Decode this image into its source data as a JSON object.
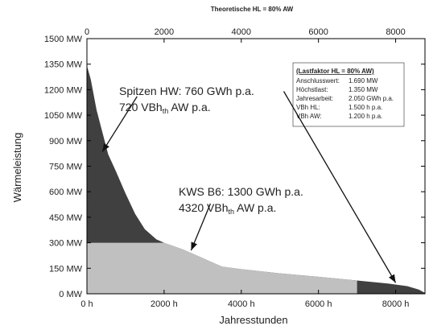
{
  "chart_data": {
    "type": "area",
    "title": "Theoretische HL = 80% AW",
    "xlabel": "Jahresstunden",
    "ylabel": "Wärmeleistung",
    "xlim": [
      0,
      8760
    ],
    "ylim": [
      0,
      1500
    ],
    "x_ticks": [
      {
        "value": 0,
        "bottom": "0 h",
        "top": "0"
      },
      {
        "value": 2000,
        "bottom": "2000 h",
        "top": "2000"
      },
      {
        "value": 4000,
        "bottom": "4000 h",
        "top": "4000"
      },
      {
        "value": 6000,
        "bottom": "6000 h",
        "top": "6000"
      },
      {
        "value": 8000,
        "bottom": "8000 h",
        "top": "8000"
      }
    ],
    "y_ticks": [
      {
        "value": 0,
        "label": "0 MW"
      },
      {
        "value": 150,
        "label": "150 MW"
      },
      {
        "value": 300,
        "label": "300 MW"
      },
      {
        "value": 450,
        "label": "450 MW"
      },
      {
        "value": 600,
        "label": "600 MW"
      },
      {
        "value": 750,
        "label": "750 MW"
      },
      {
        "value": 900,
        "label": "900 MW"
      },
      {
        "value": 1050,
        "label": "1050 MW"
      },
      {
        "value": 1200,
        "label": "1200 MW"
      },
      {
        "value": 1350,
        "label": "1350 MW"
      },
      {
        "value": 1500,
        "label": "1500 MW"
      }
    ],
    "load_curve": [
      {
        "x": 0,
        "y": 1340
      },
      {
        "x": 100,
        "y": 1260
      },
      {
        "x": 250,
        "y": 1080
      },
      {
        "x": 400,
        "y": 950
      },
      {
        "x": 550,
        "y": 820
      },
      {
        "x": 750,
        "y": 720
      },
      {
        "x": 1000,
        "y": 590
      },
      {
        "x": 1250,
        "y": 470
      },
      {
        "x": 1500,
        "y": 380
      },
      {
        "x": 1800,
        "y": 320
      },
      {
        "x": 2000,
        "y": 300
      },
      {
        "x": 2500,
        "y": 260
      },
      {
        "x": 3000,
        "y": 210
      },
      {
        "x": 3500,
        "y": 160
      },
      {
        "x": 4000,
        "y": 145
      },
      {
        "x": 5000,
        "y": 120
      },
      {
        "x": 6000,
        "y": 100
      },
      {
        "x": 7000,
        "y": 78
      },
      {
        "x": 7800,
        "y": 60
      },
      {
        "x": 8300,
        "y": 45
      },
      {
        "x": 8600,
        "y": 25
      },
      {
        "x": 8760,
        "y": 5
      }
    ],
    "series": [
      {
        "name": "KWS B6",
        "color": "#c0c0c0",
        "cap": 300,
        "from": 0,
        "to": 7000
      },
      {
        "name": "Spitzen HW",
        "color": "#404040"
      }
    ],
    "annotations": {
      "spitzen": {
        "line1": "Spitzen HW: 760 GWh p.a.",
        "line2_pre": "720 VBh",
        "line2_sub": "th",
        "line2_post": " AW p.a."
      },
      "kws": {
        "line1": "KWS B6: 1300 GWh p.a.",
        "line2_pre": "4320 VBh",
        "line2_sub": "th",
        "line2_post": " AW p.a."
      }
    },
    "arrows": [
      {
        "from": [
          1300,
          1160
        ],
        "to": [
          400,
          835
        ]
      },
      {
        "from": [
          5100,
          1190
        ],
        "to": [
          8000,
          65
        ]
      },
      {
        "from": [
          3200,
          530
        ],
        "to": [
          2700,
          255
        ]
      }
    ],
    "info_box": {
      "title": "(Lastfaktor HL = 80% AW)",
      "rows": [
        {
          "label": "Anschlusswert:",
          "value": "1.690 MW"
        },
        {
          "label": "Höchstlast:",
          "value": "1.350 MW"
        },
        {
          "label": "Jahresarbeit:",
          "value": "2.050 GWh p.a."
        },
        {
          "label": "VBh HL:",
          "value": "1.500 h p.a."
        },
        {
          "label": "VBh AW:",
          "value": "1.200 h p.a."
        }
      ]
    },
    "title_color": "#e53030"
  }
}
